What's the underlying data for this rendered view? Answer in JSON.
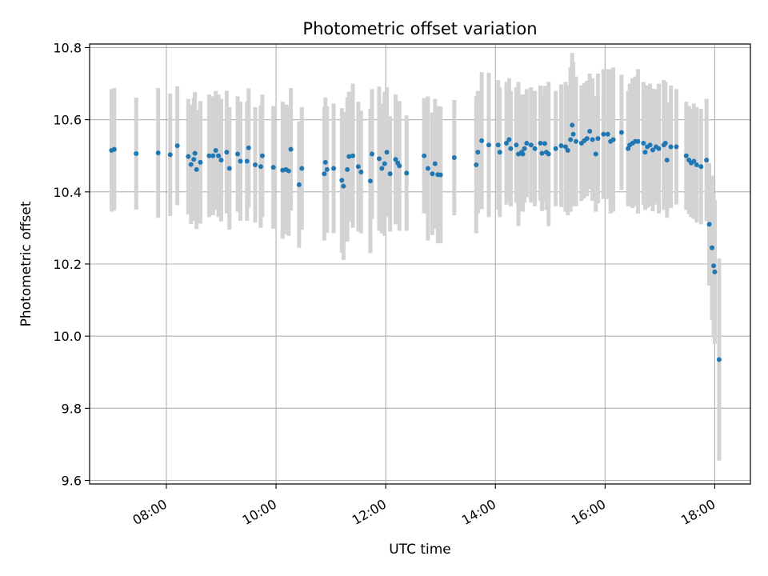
{
  "chart_data": {
    "type": "scatter",
    "title": "Photometric offset variation",
    "xlabel": "UTC time",
    "ylabel": "Photometric offset",
    "x_unit": "hours (UTC)",
    "xlim": [
      6.6,
      18.65
    ],
    "ylim": [
      9.59,
      10.81
    ],
    "x_ticks": [
      {
        "value": 8,
        "label": "08:00"
      },
      {
        "value": 10,
        "label": "10:00"
      },
      {
        "value": 12,
        "label": "12:00"
      },
      {
        "value": 14,
        "label": "14:00"
      },
      {
        "value": 16,
        "label": "16:00"
      },
      {
        "value": 18,
        "label": "18:00"
      }
    ],
    "y_ticks": [
      {
        "value": 9.6,
        "label": "9.6"
      },
      {
        "value": 9.8,
        "label": "9.8"
      },
      {
        "value": 10.0,
        "label": "10.0"
      },
      {
        "value": 10.2,
        "label": "10.2"
      },
      {
        "value": 10.4,
        "label": "10.4"
      },
      {
        "value": 10.6,
        "label": "10.6"
      },
      {
        "value": 10.8,
        "label": "10.8"
      }
    ],
    "grid": true,
    "colors": {
      "point": "#1f77b4",
      "errorbar": "#d3d3d3",
      "grid": "#b0b0b0"
    },
    "series": [
      {
        "points": [
          [
            7.0,
            10.515,
            0.17
          ],
          [
            7.05,
            10.518,
            0.17
          ],
          [
            7.45,
            10.506,
            0.155
          ],
          [
            7.85,
            10.508,
            0.18
          ],
          [
            8.07,
            10.503,
            0.17
          ],
          [
            8.2,
            10.528,
            0.165
          ],
          [
            8.4,
            10.498,
            0.16
          ],
          [
            8.45,
            10.476,
            0.165
          ],
          [
            8.5,
            10.49,
            0.17
          ],
          [
            8.52,
            10.507,
            0.17
          ],
          [
            8.55,
            10.462,
            0.165
          ],
          [
            8.62,
            10.482,
            0.17
          ],
          [
            8.78,
            10.5,
            0.17
          ],
          [
            8.85,
            10.5,
            0.165
          ],
          [
            8.9,
            10.515,
            0.165
          ],
          [
            8.95,
            10.5,
            0.17
          ],
          [
            9.0,
            10.488,
            0.17
          ],
          [
            9.1,
            10.51,
            0.17
          ],
          [
            9.15,
            10.465,
            0.17
          ],
          [
            9.3,
            10.505,
            0.16
          ],
          [
            9.35,
            10.485,
            0.165
          ],
          [
            9.47,
            10.485,
            0.165
          ],
          [
            9.5,
            10.522,
            0.165
          ],
          [
            9.62,
            10.475,
            0.16
          ],
          [
            9.72,
            10.47,
            0.17
          ],
          [
            9.75,
            10.5,
            0.17
          ],
          [
            9.95,
            10.468,
            0.17
          ],
          [
            10.12,
            10.46,
            0.19
          ],
          [
            10.18,
            10.462,
            0.18
          ],
          [
            10.23,
            10.458,
            0.18
          ],
          [
            10.27,
            10.518,
            0.17
          ],
          [
            10.42,
            10.42,
            0.175
          ],
          [
            10.47,
            10.465,
            0.17
          ],
          [
            10.88,
            10.45,
            0.185
          ],
          [
            10.9,
            10.482,
            0.18
          ],
          [
            10.93,
            10.462,
            0.175
          ],
          [
            11.05,
            10.465,
            0.18
          ],
          [
            11.2,
            10.432,
            0.2
          ],
          [
            11.23,
            10.416,
            0.205
          ],
          [
            11.3,
            10.462,
            0.2
          ],
          [
            11.33,
            10.498,
            0.18
          ],
          [
            11.4,
            10.5,
            0.2
          ],
          [
            11.5,
            10.47,
            0.18
          ],
          [
            11.55,
            10.455,
            0.17
          ],
          [
            11.72,
            10.43,
            0.2
          ],
          [
            11.75,
            10.505,
            0.18
          ],
          [
            11.88,
            10.492,
            0.2
          ],
          [
            11.93,
            10.465,
            0.18
          ],
          [
            11.98,
            10.478,
            0.2
          ],
          [
            12.02,
            10.51,
            0.18
          ],
          [
            12.08,
            10.45,
            0.16
          ],
          [
            12.18,
            10.49,
            0.18
          ],
          [
            12.22,
            10.48,
            0.16
          ],
          [
            12.25,
            10.472,
            0.18
          ],
          [
            12.38,
            10.452,
            0.16
          ],
          [
            12.7,
            10.5,
            0.16
          ],
          [
            12.77,
            10.465,
            0.2
          ],
          [
            12.85,
            10.45,
            0.17
          ],
          [
            12.9,
            10.478,
            0.18
          ],
          [
            12.95,
            10.448,
            0.19
          ],
          [
            13.0,
            10.447,
            0.19
          ],
          [
            13.25,
            10.495,
            0.16
          ],
          [
            13.65,
            10.475,
            0.19
          ],
          [
            13.68,
            10.51,
            0.17
          ],
          [
            13.75,
            10.542,
            0.19
          ],
          [
            13.88,
            10.53,
            0.2
          ],
          [
            14.05,
            10.53,
            0.18
          ],
          [
            14.08,
            10.51,
            0.18
          ],
          [
            14.2,
            10.535,
            0.17
          ],
          [
            14.25,
            10.545,
            0.17
          ],
          [
            14.28,
            10.52,
            0.16
          ],
          [
            14.38,
            10.53,
            0.16
          ],
          [
            14.42,
            10.505,
            0.2
          ],
          [
            14.48,
            10.51,
            0.16
          ],
          [
            14.5,
            10.505,
            0.16
          ],
          [
            14.53,
            10.52,
            0.15
          ],
          [
            14.57,
            10.535,
            0.15
          ],
          [
            14.65,
            10.53,
            0.16
          ],
          [
            14.72,
            10.52,
            0.16
          ],
          [
            14.82,
            10.535,
            0.16
          ],
          [
            14.85,
            10.507,
            0.16
          ],
          [
            14.9,
            10.534,
            0.16
          ],
          [
            14.93,
            10.51,
            0.16
          ],
          [
            14.97,
            10.505,
            0.2
          ],
          [
            15.1,
            10.52,
            0.16
          ],
          [
            15.2,
            10.528,
            0.17
          ],
          [
            15.28,
            10.525,
            0.18
          ],
          [
            15.32,
            10.515,
            0.18
          ],
          [
            15.37,
            10.545,
            0.2
          ],
          [
            15.4,
            10.585,
            0.2
          ],
          [
            15.42,
            10.56,
            0.2
          ],
          [
            15.47,
            10.54,
            0.18
          ],
          [
            15.57,
            10.535,
            0.16
          ],
          [
            15.62,
            10.542,
            0.16
          ],
          [
            15.67,
            10.548,
            0.16
          ],
          [
            15.72,
            10.568,
            0.16
          ],
          [
            15.77,
            10.545,
            0.17
          ],
          [
            15.83,
            10.505,
            0.16
          ],
          [
            15.87,
            10.548,
            0.18
          ],
          [
            15.97,
            10.56,
            0.18
          ],
          [
            16.05,
            10.56,
            0.18
          ],
          [
            16.1,
            10.54,
            0.2
          ],
          [
            16.15,
            10.545,
            0.2
          ],
          [
            16.3,
            10.565,
            0.16
          ],
          [
            16.42,
            10.52,
            0.16
          ],
          [
            16.45,
            10.53,
            0.17
          ],
          [
            16.5,
            10.535,
            0.18
          ],
          [
            16.55,
            10.54,
            0.18
          ],
          [
            16.6,
            10.54,
            0.2
          ],
          [
            16.7,
            10.535,
            0.17
          ],
          [
            16.73,
            10.51,
            0.16
          ],
          [
            16.77,
            10.525,
            0.17
          ],
          [
            16.82,
            10.53,
            0.17
          ],
          [
            16.87,
            10.516,
            0.17
          ],
          [
            16.93,
            10.525,
            0.16
          ],
          [
            16.98,
            10.52,
            0.18
          ],
          [
            17.07,
            10.53,
            0.18
          ],
          [
            17.1,
            10.535,
            0.17
          ],
          [
            17.13,
            10.488,
            0.16
          ],
          [
            17.2,
            10.525,
            0.17
          ],
          [
            17.3,
            10.525,
            0.16
          ],
          [
            17.48,
            10.5,
            0.15
          ],
          [
            17.53,
            10.488,
            0.15
          ],
          [
            17.57,
            10.48,
            0.15
          ],
          [
            17.62,
            10.485,
            0.16
          ],
          [
            17.67,
            10.475,
            0.16
          ],
          [
            17.75,
            10.47,
            0.16
          ],
          [
            17.85,
            10.488,
            0.17
          ],
          [
            17.9,
            10.31,
            0.17
          ],
          [
            17.95,
            10.245,
            0.2
          ],
          [
            17.98,
            10.195,
            0.2
          ],
          [
            18.0,
            10.178,
            0.2
          ],
          [
            18.08,
            9.935,
            0.28
          ]
        ]
      }
    ]
  }
}
